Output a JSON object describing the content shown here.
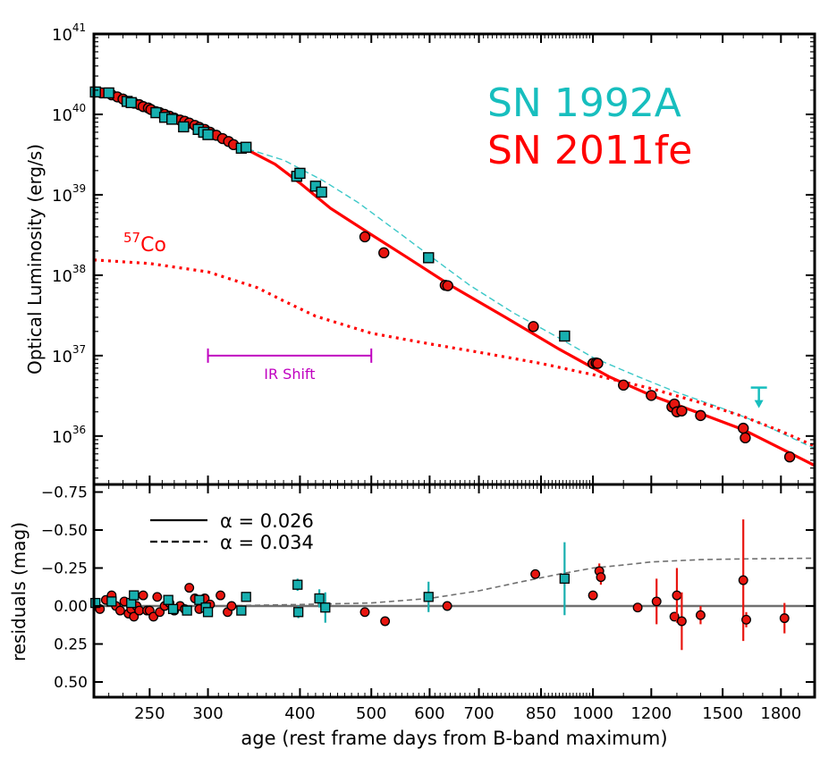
{
  "chart_data": [
    {
      "type": "scatter",
      "panel": "top",
      "xlabel": "",
      "ylabel": "Optical Luminosity (erg/s)",
      "xscale": "log",
      "yscale": "log",
      "xlim": [
        210,
        2000
      ],
      "ylim": [
        2.5e+35,
        1e+41
      ],
      "ytick_labels": [
        {
          "base": "10",
          "exp": "36",
          "value": 1e+36
        },
        {
          "base": "10",
          "exp": "37",
          "value": 1e+37
        },
        {
          "base": "10",
          "exp": "38",
          "value": 1e+38
        },
        {
          "base": "10",
          "exp": "39",
          "value": 1e+39
        },
        {
          "base": "10",
          "exp": "40",
          "value": 1e+40
        },
        {
          "base": "10",
          "exp": "41",
          "value": 1e+41
        }
      ],
      "legend_texts": [
        {
          "text": "SN 1992A",
          "color": "#17BEBE"
        },
        {
          "text": "SN 2011fe",
          "color": "#FF0000"
        }
      ],
      "annotations": {
        "co57_base": "57",
        "co57_text": "Co",
        "ir_shift_label": "IR Shift",
        "ir_shift_range_days": [
          300,
          500
        ],
        "ir_shift_luminosity": 1e+37
      },
      "series": [
        {
          "name": "SN 2011fe",
          "kind": "points",
          "marker": "circle",
          "color": "#E8150F",
          "x": [
            211,
            215,
            222,
            226,
            230,
            233,
            238,
            242,
            245,
            249,
            251,
            255,
            258,
            262,
            266,
            270,
            275,
            279,
            283,
            288,
            292,
            297,
            302,
            308,
            314,
            320,
            325,
            490,
            520,
            630,
            635,
            830,
            1000,
            1010,
            1015,
            1100,
            1200,
            1280,
            1290,
            1300,
            1320,
            1400,
            1600,
            1610,
            1850
          ],
          "y": [
            1.9e+40,
            1.85e+40,
            1.75e+40,
            1.65e+40,
            1.55e+40,
            1.45e+40,
            1.38e+40,
            1.32e+40,
            1.25e+40,
            1.2e+40,
            1.15e+40,
            1.08e+40,
            1.05e+40,
            1e+40,
            9.5e+39,
            9e+39,
            8.5e+39,
            8.2e+39,
            7.8e+39,
            7.3e+39,
            6.9e+39,
            6.5e+39,
            6e+39,
            5.5e+39,
            5e+39,
            4.6e+39,
            4.2e+39,
            3e+38,
            1.9e+38,
            7.5e+37,
            7.4e+37,
            2.3e+37,
            8e+36,
            8.1e+36,
            8e+36,
            4.3e+36,
            3.2e+36,
            2.3e+36,
            2.5e+36,
            2e+36,
            2.05e+36,
            1.8e+36,
            1.25e+36,
            9.5e+35,
            5.5e+35
          ]
        },
        {
          "name": "SN 1992A",
          "kind": "points",
          "marker": "square",
          "color": "#17AFAF",
          "x": [
            211,
            220,
            233,
            236,
            255,
            262,
            268,
            278,
            291,
            296,
            300,
            333,
            338,
            396,
            400,
            420,
            428,
            598,
            915
          ],
          "y": [
            1.9e+40,
            1.85e+40,
            1.45e+40,
            1.4e+40,
            1.05e+40,
            9.2e+39,
            8.7e+39,
            7e+39,
            6.5e+39,
            6e+39,
            5.6e+39,
            3.8e+39,
            3.9e+39,
            1.7e+39,
            1.85e+39,
            1.28e+39,
            1.08e+39,
            1.65e+38,
            1.75e+37
          ]
        },
        {
          "name": "SN 2011fe model",
          "kind": "line",
          "style": "solid",
          "color": "#FF0000",
          "x": [
            210,
            250,
            300,
            340,
            370,
            400,
            440,
            500,
            560,
            640,
            760,
            900,
            1050,
            1200,
            1400,
            1600,
            1800,
            2000
          ],
          "y": [
            1.9e+40,
            1.2e+40,
            6.3e+39,
            3.6e+39,
            2.4e+39,
            1.4e+39,
            6.8e+38,
            3.2e+38,
            1.65e+38,
            7.5e+37,
            3e+37,
            1.2e+37,
            5.5e+36,
            3.2e+36,
            1.9e+36,
            1.2e+36,
            7e+35,
            4.3e+35
          ]
        },
        {
          "name": "SN 1992A model",
          "kind": "line",
          "style": "dashed",
          "color": "#3CC8C8",
          "x": [
            340,
            380,
            430,
            480,
            540,
            600,
            680,
            780,
            900,
            1000,
            1150,
            1300,
            1500,
            1700,
            2000
          ],
          "y": [
            3.7e+39,
            2.7e+39,
            1.5e+39,
            8e+38,
            3.6e+38,
            1.75e+38,
            7.5e+37,
            3.4e+37,
            1.65e+37,
            9.5e+36,
            5.5e+36,
            3.5e+36,
            2.2e+36,
            1.4e+36,
            7e+35
          ]
        },
        {
          "name": "57Co",
          "kind": "line",
          "style": "dotted",
          "color": "#FF0000",
          "x": [
            210,
            250,
            300,
            350,
            380,
            420,
            500,
            600,
            700,
            850,
            1000,
            1200,
            1400,
            1600,
            1800,
            2000
          ],
          "y": [
            1.55e+38,
            1.4e+38,
            1.1e+38,
            7e+37,
            4.8e+37,
            3.1e+37,
            1.9e+37,
            1.4e+37,
            1.1e+37,
            8e+36,
            5.8e+36,
            3.9e+36,
            2.6e+36,
            1.75e+36,
            1.15e+36,
            7.5e+35
          ]
        }
      ],
      "upper_limit": {
        "x": 1680,
        "y": 4e+36,
        "color": "#17BEBE"
      }
    },
    {
      "type": "scatter",
      "panel": "bottom",
      "xlabel": "age (rest frame days from B-band maximum)",
      "ylabel": "residuals (mag)",
      "xscale": "log",
      "xlim": [
        210,
        2000
      ],
      "ylim": [
        0.6,
        -0.8
      ],
      "xtick_labels": [
        {
          "label": "250",
          "value": 250
        },
        {
          "label": "300",
          "value": 300
        },
        {
          "label": "400",
          "value": 400
        },
        {
          "label": "500",
          "value": 500
        },
        {
          "label": "600",
          "value": 600
        },
        {
          "label": "700",
          "value": 700
        },
        {
          "label": "850",
          "value": 850
        },
        {
          "label": "1000",
          "value": 1000
        },
        {
          "label": "1200",
          "value": 1200
        },
        {
          "label": "1500",
          "value": 1500
        },
        {
          "label": "1800",
          "value": 1800
        }
      ],
      "ytick_labels": [
        {
          "label": "−0.75",
          "value": -0.75
        },
        {
          "label": "−0.50",
          "value": -0.5
        },
        {
          "label": "−0.25",
          "value": -0.25
        },
        {
          "label": "0.00",
          "value": 0.0
        },
        {
          "label": "0.25",
          "value": 0.25
        },
        {
          "label": "0.50",
          "value": 0.5
        }
      ],
      "legend": [
        {
          "label": "α = 0.026",
          "style": "solid"
        },
        {
          "label": "α = 0.034",
          "style": "dashed"
        }
      ],
      "series": [
        {
          "name": "SN 2011fe residuals",
          "marker": "circle",
          "color": "#E8150F",
          "x": [
            214,
            218,
            222,
            225,
            228,
            231,
            234,
            236,
            238,
            240,
            242,
            245,
            248,
            250,
            253,
            256,
            258,
            262,
            266,
            270,
            275,
            279,
            283,
            288,
            292,
            297,
            302,
            312,
            319,
            323,
            490,
            522,
            634,
            835,
            1000,
            1020,
            1025,
            1150,
            1220,
            1290,
            1300,
            1320,
            1400,
            1600,
            1615,
            1820
          ],
          "y": [
            0.02,
            -0.04,
            -0.07,
            0.0,
            0.03,
            -0.03,
            0.05,
            0.02,
            0.07,
            0.0,
            0.03,
            -0.07,
            0.03,
            0.03,
            0.07,
            -0.06,
            0.04,
            0.0,
            -0.02,
            0.03,
            0.0,
            0.02,
            -0.12,
            -0.05,
            0.02,
            -0.05,
            -0.01,
            -0.07,
            0.04,
            0.0,
            0.04,
            0.1,
            0.0,
            -0.21,
            -0.07,
            -0.23,
            -0.19,
            0.01,
            -0.03,
            0.07,
            -0.07,
            0.1,
            0.06,
            -0.17,
            0.09,
            0.08
          ],
          "yerr": [
            0,
            0,
            0,
            0,
            0,
            0,
            0,
            0,
            0,
            0,
            0,
            0,
            0,
            0,
            0,
            0,
            0,
            0,
            0,
            0,
            0,
            0,
            0,
            0,
            0,
            0,
            0,
            0,
            0,
            0,
            0,
            0,
            0,
            0,
            0,
            0.05,
            0.05,
            0.03,
            0.15,
            0.03,
            0.18,
            0.19,
            0.06,
            0.4,
            0.05,
            0.1
          ]
        },
        {
          "name": "SN 1992A residuals",
          "marker": "square",
          "color": "#17AFAF",
          "x": [
            211,
            222,
            236,
            238,
            265,
            269,
            281,
            292,
            298,
            300,
            333,
            338,
            397,
            398,
            425,
            433,
            598,
            915
          ],
          "y": [
            -0.02,
            -0.03,
            -0.02,
            -0.07,
            -0.04,
            0.02,
            0.03,
            -0.04,
            0.01,
            0.04,
            0.03,
            -0.06,
            -0.14,
            0.04,
            -0.05,
            0.01,
            -0.06,
            -0.18
          ],
          "yerr": [
            0,
            0,
            0,
            0,
            0,
            0,
            0,
            0,
            0,
            0,
            0,
            0,
            0.04,
            0.04,
            0.06,
            0.1,
            0.1,
            0.24
          ]
        },
        {
          "name": "dashed residual curve",
          "kind": "line",
          "style": "dashed",
          "color": "#707070",
          "x": [
            210,
            300,
            400,
            500,
            600,
            700,
            800,
            900,
            1000,
            1100,
            1200,
            1400,
            1600,
            2000
          ],
          "y": [
            0.0,
            0.0,
            -0.01,
            -0.02,
            -0.05,
            -0.1,
            -0.16,
            -0.21,
            -0.25,
            -0.27,
            -0.29,
            -0.305,
            -0.31,
            -0.315
          ]
        }
      ]
    }
  ]
}
